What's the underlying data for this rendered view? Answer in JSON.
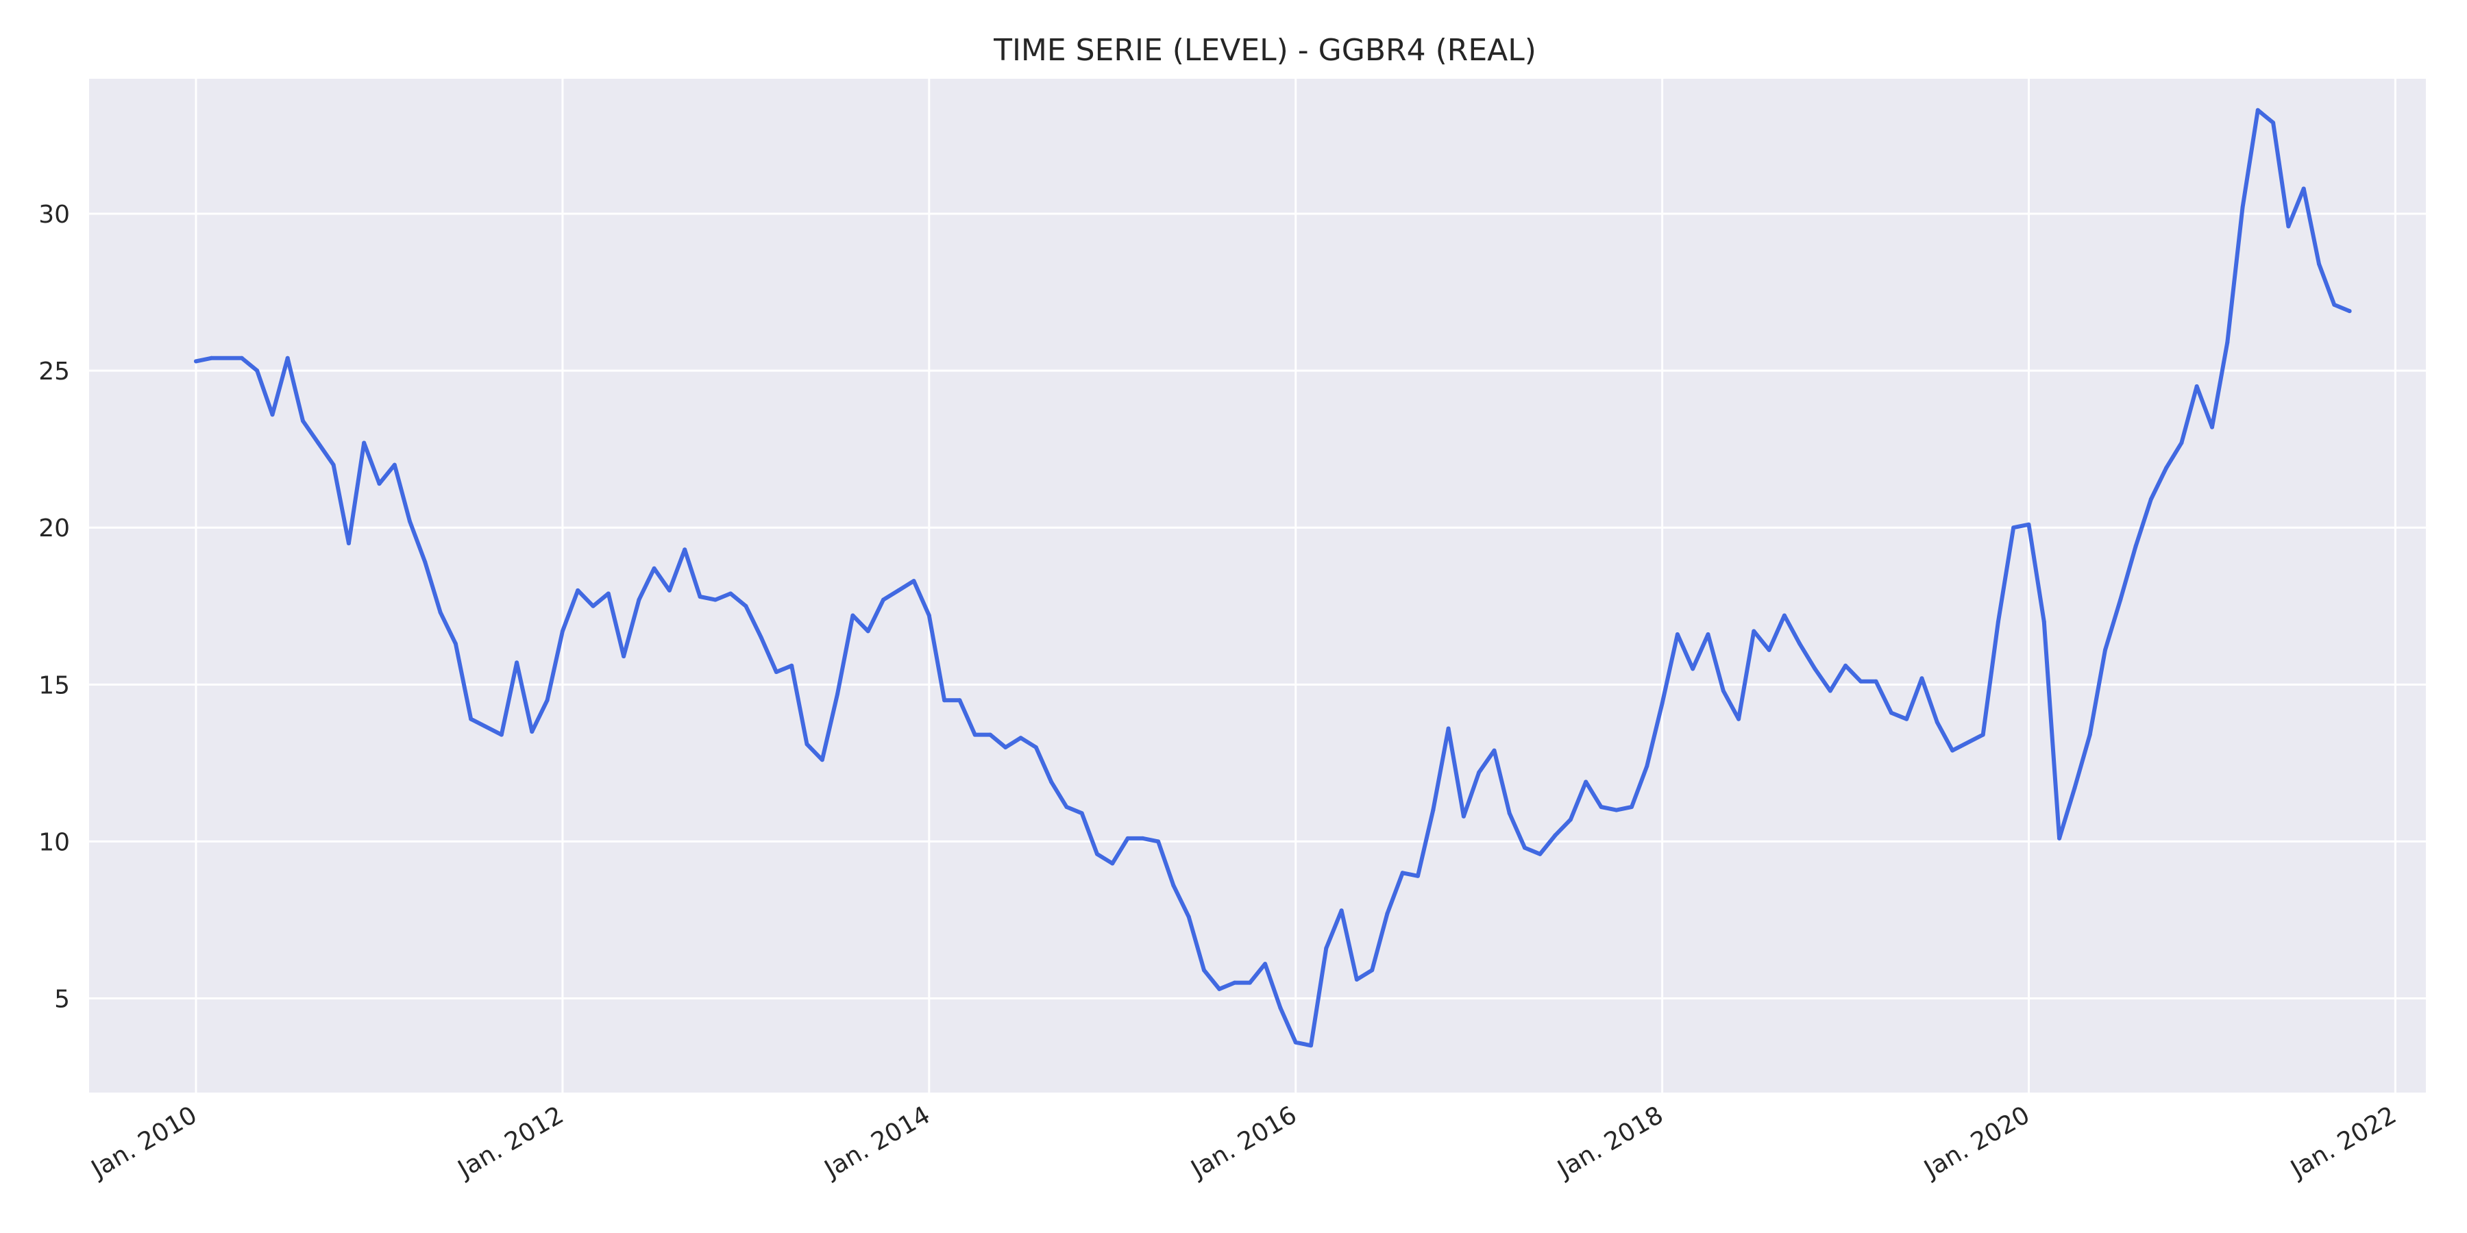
{
  "chart_data": {
    "type": "line",
    "title": "TIME SERIE (LEVEL) - GGBR4 (REAL)",
    "xlabel": "",
    "ylabel": "",
    "colors": {
      "line": "#4169E1",
      "plot_background": "#EAEAF2",
      "grid": "#FFFFFF"
    },
    "grid": true,
    "legend": "none",
    "xlim": [
      "2009-06",
      "2022-03"
    ],
    "ylim": [
      2,
      34.3
    ],
    "x_ticks": [
      {
        "date": "2010-01",
        "label": "Jan. 2010"
      },
      {
        "date": "2012-01",
        "label": "Jan. 2012"
      },
      {
        "date": "2014-01",
        "label": "Jan. 2014"
      },
      {
        "date": "2016-01",
        "label": "Jan. 2016"
      },
      {
        "date": "2018-01",
        "label": "Jan. 2018"
      },
      {
        "date": "2020-01",
        "label": "Jan. 2020"
      },
      {
        "date": "2022-01",
        "label": "Jan. 2022"
      }
    ],
    "y_ticks": [
      5,
      10,
      15,
      20,
      25,
      30
    ],
    "series": [
      {
        "x": [
          "2010-01",
          "2010-02",
          "2010-04",
          "2010-05",
          "2010-06",
          "2010-07",
          "2010-08",
          "2010-09",
          "2010-10",
          "2010-11",
          "2010-12",
          "2011-01",
          "2011-02",
          "2011-03",
          "2011-04",
          "2011-05",
          "2011-06",
          "2011-07",
          "2011-09",
          "2011-10",
          "2011-11",
          "2011-12",
          "2012-01",
          "2012-02",
          "2012-03",
          "2012-04",
          "2012-05",
          "2012-06",
          "2012-07",
          "2012-08",
          "2012-09",
          "2012-10",
          "2012-11",
          "2012-12",
          "2013-01",
          "2013-02",
          "2013-03",
          "2013-04",
          "2013-05",
          "2013-06",
          "2013-07",
          "2013-08",
          "2013-09",
          "2013-10",
          "2013-11",
          "2013-12",
          "2014-01",
          "2014-02",
          "2014-03",
          "2014-04",
          "2014-05",
          "2014-06",
          "2014-07",
          "2014-08",
          "2014-09",
          "2014-10",
          "2014-11",
          "2014-12",
          "2015-01",
          "2015-02",
          "2015-03",
          "2015-04",
          "2015-05",
          "2015-06",
          "2015-07",
          "2015-08",
          "2015-09",
          "2015-10",
          "2015-11",
          "2015-12",
          "2016-01",
          "2016-02",
          "2016-03",
          "2016-04",
          "2016-05",
          "2016-06",
          "2016-07",
          "2016-08",
          "2016-09",
          "2016-10",
          "2016-11",
          "2016-12",
          "2017-01",
          "2017-02",
          "2017-03",
          "2017-04",
          "2017-05",
          "2017-06",
          "2017-07",
          "2017-08",
          "2017-09",
          "2017-10",
          "2017-11",
          "2017-12",
          "2018-01",
          "2018-02",
          "2018-03",
          "2018-04",
          "2018-05",
          "2018-06",
          "2018-07",
          "2018-08",
          "2018-09",
          "2018-10",
          "2018-11",
          "2018-12",
          "2019-01",
          "2019-02",
          "2019-03",
          "2019-04",
          "2019-05",
          "2019-06",
          "2019-07",
          "2019-08",
          "2019-10",
          "2019-11",
          "2019-12",
          "2020-01",
          "2020-02",
          "2020-03",
          "2020-04",
          "2020-05",
          "2020-06",
          "2020-07",
          "2020-08",
          "2020-09",
          "2020-10",
          "2020-11",
          "2020-12",
          "2021-01",
          "2021-02",
          "2021-03",
          "2021-04",
          "2021-05",
          "2021-06",
          "2021-07",
          "2021-08",
          "2021-09",
          "2021-10"
        ],
        "values": [
          25.3,
          25.4,
          25.4,
          25.0,
          23.6,
          25.4,
          23.4,
          22.7,
          22.0,
          19.5,
          22.7,
          21.4,
          22.0,
          20.2,
          18.9,
          17.3,
          16.3,
          13.9,
          13.4,
          15.7,
          13.5,
          14.5,
          16.7,
          18.0,
          17.5,
          17.9,
          15.9,
          17.7,
          18.7,
          18.0,
          19.3,
          17.8,
          17.7,
          17.9,
          17.5,
          16.5,
          15.4,
          15.6,
          13.1,
          12.6,
          14.7,
          17.2,
          16.7,
          17.7,
          18.0,
          18.3,
          17.2,
          14.5,
          14.5,
          13.4,
          13.4,
          13.0,
          13.3,
          13.0,
          11.9,
          11.1,
          10.9,
          9.6,
          9.3,
          10.1,
          10.1,
          10.0,
          8.6,
          7.6,
          5.9,
          5.3,
          5.5,
          5.5,
          6.1,
          4.7,
          3.6,
          3.5,
          6.6,
          7.8,
          5.6,
          5.9,
          7.7,
          9.0,
          8.9,
          11.0,
          13.6,
          10.8,
          12.2,
          12.9,
          10.9,
          9.8,
          9.6,
          10.2,
          10.7,
          11.9,
          11.1,
          11.0,
          11.1,
          12.4,
          14.4,
          16.6,
          15.5,
          16.6,
          14.8,
          13.9,
          16.7,
          16.1,
          17.2,
          16.3,
          15.5,
          14.8,
          15.6,
          15.1,
          15.1,
          14.1,
          13.9,
          15.2,
          13.8,
          12.9,
          13.4,
          17.0,
          20.0,
          20.1,
          17.0,
          10.1,
          11.7,
          13.4,
          16.1,
          17.7,
          19.4,
          20.9,
          21.9,
          22.7,
          24.5,
          23.2,
          25.9,
          30.2,
          33.3,
          32.9,
          29.6,
          30.8,
          28.4,
          27.1,
          26.9
        ]
      }
    ]
  }
}
